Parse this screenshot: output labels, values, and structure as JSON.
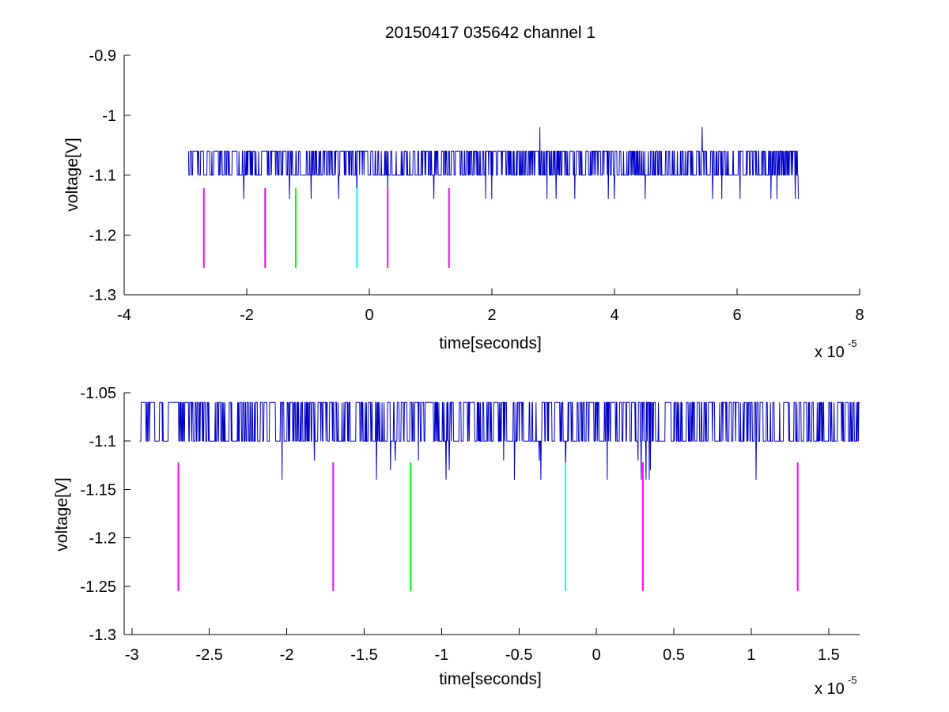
{
  "title": "20150417 035642 channel 1",
  "colors": {
    "signal": "#0000c8",
    "magenta": "#ff00ff",
    "green": "#00ff00",
    "cyan": "#00ffff",
    "axes": "#000000"
  },
  "chart_data": [
    {
      "type": "line",
      "title": "20150417 035642 channel 1",
      "xlabel": "time[seconds]",
      "ylabel": "voltage[V]",
      "x_exponent_label": "x 10",
      "x_exponent": "-5",
      "x_scale": 1e-05,
      "xlim": [
        -4,
        8
      ],
      "ylim": [
        -1.3,
        -0.9
      ],
      "xticks": [
        -4,
        -2,
        0,
        2,
        4,
        6,
        8
      ],
      "xtick_labels": [
        "-4",
        "-2",
        "0",
        "2",
        "4",
        "6",
        "8"
      ],
      "yticks": [
        -1.3,
        -1.2,
        -1.1,
        -1,
        -0.9
      ],
      "ytick_labels": [
        "-1.3",
        "-1.2",
        "-1.1",
        "-1",
        "-0.9"
      ],
      "grid": false,
      "series": [
        {
          "color": "#0000c8",
          "x_range": [
            -2.95,
            7.0
          ],
          "baseline": -1.1,
          "high": -1.06,
          "dips": [
            [
              -2.05,
              -1.14
            ],
            [
              -1.3,
              -1.14
            ],
            [
              -0.95,
              -1.14
            ],
            [
              -0.5,
              -1.14
            ],
            [
              -0.2,
              -1.14
            ],
            [
              0.3,
              -1.14
            ],
            [
              1.05,
              -1.14
            ],
            [
              1.9,
              -1.14
            ],
            [
              2.0,
              -1.14
            ],
            [
              2.9,
              -1.14
            ],
            [
              3.05,
              -1.14
            ],
            [
              3.35,
              -1.14
            ],
            [
              3.9,
              -1.14
            ],
            [
              4.0,
              -1.14
            ],
            [
              4.5,
              -1.14
            ],
            [
              5.6,
              -1.14
            ],
            [
              5.75,
              -1.14
            ],
            [
              6.05,
              -1.14
            ],
            [
              6.55,
              -1.14
            ],
            [
              6.65,
              -1.14
            ],
            [
              6.95,
              -1.14
            ],
            [
              7.0,
              -1.14
            ]
          ],
          "peaks": [
            [
              2.78,
              -1.02
            ],
            [
              5.43,
              -1.02
            ]
          ]
        }
      ],
      "markers": [
        {
          "x": -2.7,
          "y": [
            -1.255,
            -1.122
          ],
          "color": "#ff00ff"
        },
        {
          "x": -1.7,
          "y": [
            -1.255,
            -1.122
          ],
          "color": "#ff00ff"
        },
        {
          "x": -1.2,
          "y": [
            -1.255,
            -1.122
          ],
          "color": "#00ff00"
        },
        {
          "x": -0.2,
          "y": [
            -1.255,
            -1.122
          ],
          "color": "#00ffff"
        },
        {
          "x": 0.3,
          "y": [
            -1.255,
            -1.122
          ],
          "color": "#ff00ff"
        },
        {
          "x": 1.3,
          "y": [
            -1.255,
            -1.122
          ],
          "color": "#ff00ff"
        }
      ]
    },
    {
      "type": "line",
      "xlabel": "time[seconds]",
      "ylabel": "voltage[V]",
      "x_exponent_label": "x 10",
      "x_exponent": "-5",
      "x_scale": 1e-05,
      "xlim": [
        -3.05,
        1.7
      ],
      "ylim": [
        -1.3,
        -1.05
      ],
      "xticks": [
        -3,
        -2.5,
        -2,
        -1.5,
        -1,
        -0.5,
        0,
        0.5,
        1,
        1.5
      ],
      "xtick_labels": [
        "-3",
        "-2.5",
        "-2",
        "-1.5",
        "-1",
        "-0.5",
        "0",
        "0.5",
        "1",
        "1.5"
      ],
      "yticks": [
        -1.3,
        -1.25,
        -1.2,
        -1.15,
        -1.1,
        -1.05
      ],
      "ytick_labels": [
        "-1.3",
        "-1.25",
        "-1.2",
        "-1.15",
        "-1.1",
        "-1.05"
      ],
      "grid": false,
      "series": [
        {
          "color": "#0000c8",
          "x_range": [
            -2.95,
            1.7
          ],
          "baseline": -1.1,
          "high": -1.06,
          "dips": [
            [
              -2.03,
              -1.14
            ],
            [
              -1.82,
              -1.12
            ],
            [
              -1.42,
              -1.14
            ],
            [
              -1.33,
              -1.13
            ],
            [
              -1.3,
              -1.12
            ],
            [
              -1.15,
              -1.12
            ],
            [
              -0.97,
              -1.14
            ],
            [
              -0.95,
              -1.13
            ],
            [
              -0.6,
              -1.12
            ],
            [
              -0.53,
              -1.14
            ],
            [
              -0.37,
              -1.12
            ],
            [
              -0.36,
              -1.14
            ],
            [
              -0.2,
              -1.13
            ],
            [
              0.07,
              -1.14
            ],
            [
              0.27,
              -1.12
            ],
            [
              0.29,
              -1.14
            ],
            [
              0.32,
              -1.14
            ],
            [
              0.34,
              -1.14
            ],
            [
              0.35,
              -1.13
            ],
            [
              1.03,
              -1.14
            ]
          ],
          "peaks": []
        }
      ],
      "markers": [
        {
          "x": -2.7,
          "y": [
            -1.255,
            -1.122
          ],
          "color": "#ff00ff"
        },
        {
          "x": -1.7,
          "y": [
            -1.255,
            -1.122
          ],
          "color": "#ff00ff"
        },
        {
          "x": -1.2,
          "y": [
            -1.255,
            -1.122
          ],
          "color": "#00ff00"
        },
        {
          "x": -0.2,
          "y": [
            -1.255,
            -1.122
          ],
          "color": "#00ffff"
        },
        {
          "x": 0.3,
          "y": [
            -1.255,
            -1.122
          ],
          "color": "#ff00ff"
        },
        {
          "x": 1.3,
          "y": [
            -1.255,
            -1.122
          ],
          "color": "#ff00ff"
        }
      ]
    }
  ]
}
